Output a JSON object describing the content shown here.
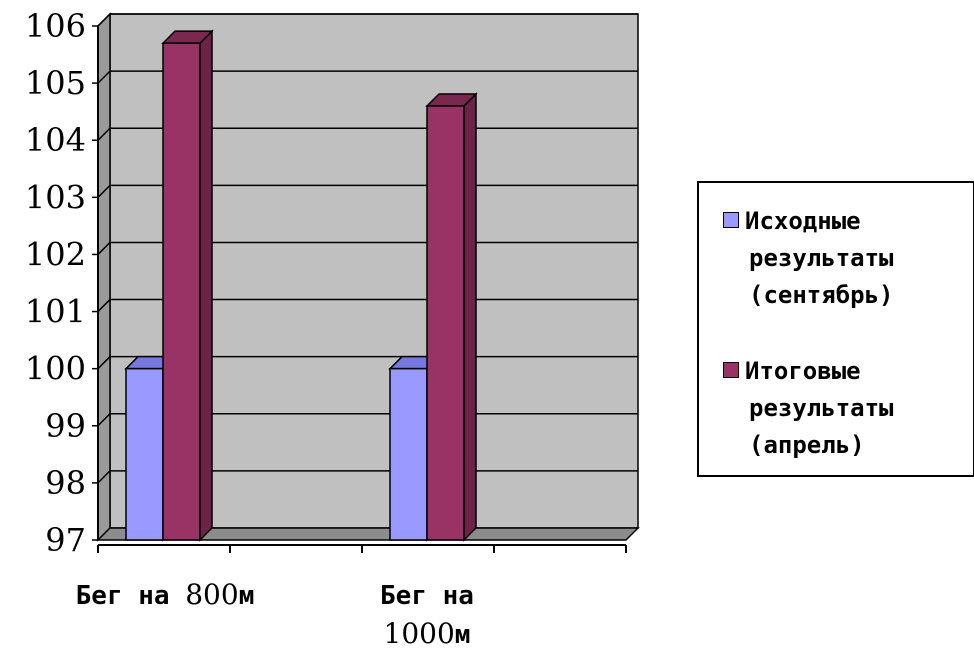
{
  "chart_data": {
    "type": "bar",
    "categories": [
      {
        "parts": [
          "Бег на ",
          "800",
          "м"
        ]
      },
      {
        "parts": [
          "Бег на",
          "1000",
          "м"
        ]
      }
    ],
    "series": [
      {
        "name": "Исходные результаты (сентябрь)",
        "name_lines": [
          "Исходные",
          "результаты",
          "(сентябрь)"
        ],
        "color": "#9999FF",
        "values": [
          100,
          100
        ]
      },
      {
        "name": "Итоговые результаты (апрель)",
        "name_lines": [
          "Итоговые",
          "результаты",
          "(апрель)"
        ],
        "color": "#993366",
        "values": [
          105.7,
          104.6
        ]
      }
    ],
    "yticks": [
      "97",
      "98",
      "99",
      "100",
      "101",
      "102",
      "103",
      "104",
      "105",
      "106"
    ],
    "ylim": [
      97,
      106
    ],
    "grid": true,
    "wall_color": "#C0C0C0",
    "legend_position": "right"
  }
}
